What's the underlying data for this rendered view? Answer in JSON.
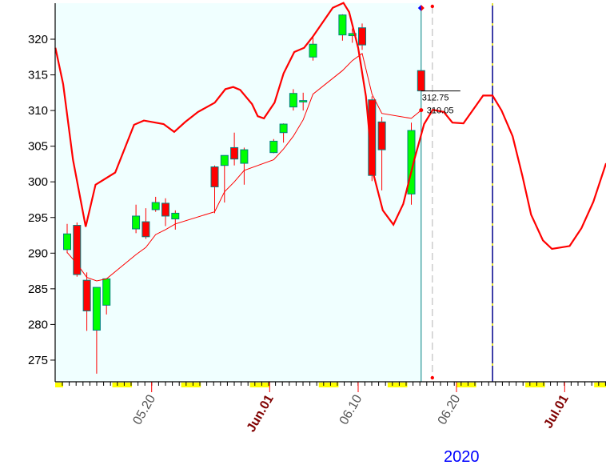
{
  "chart_data": {
    "type": "candlestick",
    "title": "",
    "xlabel": "2020",
    "ylabel": "",
    "ylim": [
      272,
      325.5
    ],
    "yticks": [
      275,
      280,
      285,
      290,
      295,
      300,
      305,
      310,
      315,
      320
    ],
    "xlim": [
      "2020-05-10",
      "2020-07-05T06:00"
    ],
    "xtick_labels": [
      {
        "date": "2020-05-20",
        "label": "05.20",
        "month_start": false
      },
      {
        "date": "2020-06-01",
        "label": "Jun.01",
        "month_start": true
      },
      {
        "date": "2020-06-10",
        "label": "06.10",
        "month_start": false
      },
      {
        "date": "2020-06-20",
        "label": "06.20",
        "month_start": false
      },
      {
        "date": "2020-07-01",
        "label": "Jul.01",
        "month_start": true
      }
    ],
    "year_label": "2020",
    "grid": false,
    "colors": {
      "up": "#00ff00",
      "down": "#ff0000",
      "candle_border": "#008080",
      "history_bg": "#f0ffff",
      "line": "#ff0000",
      "current_line": "#008080",
      "cycle_marker": "#00008b",
      "weekend": "#ffff00",
      "year": "#0000ff"
    },
    "candles": [
      {
        "date": "2020-05-11",
        "o": 290.5,
        "h": 294.1,
        "l": 290.0,
        "c": 292.7
      },
      {
        "date": "2020-05-12",
        "o": 293.9,
        "h": 294.3,
        "l": 286.7,
        "c": 287.0
      },
      {
        "date": "2020-05-13",
        "o": 286.2,
        "h": 287.3,
        "l": 279.1,
        "c": 281.9
      },
      {
        "date": "2020-05-14",
        "o": 279.2,
        "h": 285.2,
        "l": 273.1,
        "c": 285.2
      },
      {
        "date": "2020-05-15",
        "o": 282.7,
        "h": 286.4,
        "l": 281.4,
        "c": 286.4
      },
      {
        "date": "2020-05-18",
        "o": 293.4,
        "h": 296.8,
        "l": 292.8,
        "c": 295.2
      },
      {
        "date": "2020-05-19",
        "o": 294.4,
        "h": 296.3,
        "l": 292.0,
        "c": 292.3
      },
      {
        "date": "2020-05-20",
        "o": 296.1,
        "h": 297.9,
        "l": 295.8,
        "c": 297.1
      },
      {
        "date": "2020-05-21",
        "o": 297.0,
        "h": 297.7,
        "l": 293.8,
        "c": 295.2
      },
      {
        "date": "2020-05-22",
        "o": 294.8,
        "h": 296.0,
        "l": 293.3,
        "c": 295.6
      },
      {
        "date": "2020-05-26",
        "o": 302.1,
        "h": 302.3,
        "l": 295.6,
        "c": 299.3
      },
      {
        "date": "2020-05-27",
        "o": 302.3,
        "h": 303.7,
        "l": 297.1,
        "c": 303.7
      },
      {
        "date": "2020-05-28",
        "o": 304.8,
        "h": 306.9,
        "l": 302.3,
        "c": 303.2
      },
      {
        "date": "2020-05-29",
        "o": 302.6,
        "h": 304.8,
        "l": 299.6,
        "c": 304.5
      },
      {
        "date": "2020-06-01",
        "o": 304.1,
        "h": 306.0,
        "l": 304.0,
        "c": 305.7
      },
      {
        "date": "2020-06-02",
        "o": 306.9,
        "h": 308.2,
        "l": 305.5,
        "c": 308.1
      },
      {
        "date": "2020-06-03",
        "o": 310.5,
        "h": 313.0,
        "l": 310.0,
        "c": 312.4
      },
      {
        "date": "2020-06-04",
        "o": 311.2,
        "h": 312.5,
        "l": 310.0,
        "c": 311.4
      },
      {
        "date": "2020-06-05",
        "o": 317.5,
        "h": 320.5,
        "l": 317.0,
        "c": 319.3
      },
      {
        "date": "2020-06-08",
        "o": 320.6,
        "h": 323.5,
        "l": 319.8,
        "c": 323.4
      },
      {
        "date": "2020-06-09",
        "o": 320.5,
        "h": 321.5,
        "l": 319.5,
        "c": 320.8
      },
      {
        "date": "2020-06-10",
        "o": 321.6,
        "h": 322.2,
        "l": 318.5,
        "c": 319.2
      },
      {
        "date": "2020-06-11",
        "o": 311.5,
        "h": 312.0,
        "l": 300.1,
        "c": 300.9
      },
      {
        "date": "2020-06-12",
        "o": 308.4,
        "h": 309.1,
        "l": 298.8,
        "c": 304.5
      },
      {
        "date": "2020-06-15",
        "o": 298.3,
        "h": 308.3,
        "l": 296.8,
        "c": 307.2
      },
      {
        "date": "2020-06-16",
        "o": 315.6,
        "h": 315.6,
        "l": 312.75,
        "c": 312.75
      }
    ],
    "moving_average": [
      [
        "2020-05-11",
        290.1
      ],
      [
        "2020-05-12",
        288.5
      ],
      [
        "2020-05-13",
        286.6
      ],
      [
        "2020-05-14",
        286.1
      ],
      [
        "2020-05-15",
        286.4
      ],
      [
        "2020-05-18",
        289.8
      ],
      [
        "2020-05-19",
        290.8
      ],
      [
        "2020-05-20",
        292.6
      ],
      [
        "2020-05-21",
        293.3
      ],
      [
        "2020-05-22",
        294.1
      ],
      [
        "2020-05-26",
        295.8
      ],
      [
        "2020-05-27",
        298.6
      ],
      [
        "2020-05-28",
        300.0
      ],
      [
        "2020-05-29",
        301.6
      ],
      [
        "2020-06-01",
        303.1
      ],
      [
        "2020-06-02",
        304.6
      ],
      [
        "2020-06-03",
        306.4
      ],
      [
        "2020-06-04",
        308.7
      ],
      [
        "2020-06-05",
        312.3
      ],
      [
        "2020-06-08",
        315.6
      ],
      [
        "2020-06-09",
        317.0
      ],
      [
        "2020-06-10",
        318.0
      ],
      [
        "2020-06-11",
        312.3
      ],
      [
        "2020-06-12",
        309.6
      ],
      [
        "2020-06-15",
        308.9
      ],
      [
        "2020-06-16",
        310.05
      ]
    ],
    "cycle_line": [
      [
        "2020-05-10T05:00",
        318.8
      ],
      [
        "2020-05-11T00:00",
        313.7
      ],
      [
        "2020-05-12T00:00",
        303.1
      ],
      [
        "2020-05-13T07:00",
        293.7
      ],
      [
        "2020-05-14T07:00",
        299.6
      ],
      [
        "2020-05-16T07:00",
        301.3
      ],
      [
        "2020-05-18T05:00",
        308.0
      ],
      [
        "2020-05-19T05:00",
        308.6
      ],
      [
        "2020-05-21T05:00",
        308.1
      ],
      [
        "2020-05-22T07:00",
        307.0
      ],
      [
        "2020-05-23T10:00",
        308.4
      ],
      [
        "2020-05-24T17:00",
        309.8
      ],
      [
        "2020-05-26T10:00",
        311.1
      ],
      [
        "2020-05-27T12:00",
        313.0
      ],
      [
        "2020-05-28T07:00",
        313.3
      ],
      [
        "2020-05-29T00:00",
        312.9
      ],
      [
        "2020-05-30T05:00",
        310.9
      ],
      [
        "2020-05-30T19:00",
        309.2
      ],
      [
        "2020-05-31T10:00",
        308.9
      ],
      [
        "2020-06-01T12:00",
        311.1
      ],
      [
        "2020-06-02T10:00",
        315.2
      ],
      [
        "2020-06-03T12:00",
        318.2
      ],
      [
        "2020-06-04T12:00",
        318.8
      ],
      [
        "2020-06-05T10:00",
        320.4
      ],
      [
        "2020-06-07T10:00",
        324.4
      ],
      [
        "2020-06-08T12:00",
        325.1
      ],
      [
        "2020-06-09T02:00",
        323.8
      ],
      [
        "2020-06-10T00:00",
        318.8
      ],
      [
        "2020-06-10T19:00",
        312.0
      ],
      [
        "2020-06-11T12:00",
        301.4
      ],
      [
        "2020-06-12T12:00",
        296.0
      ],
      [
        "2020-06-13T14:00",
        294.0
      ],
      [
        "2020-06-14T14:00",
        296.9
      ],
      [
        "2020-06-15T17:00",
        303.1
      ],
      [
        "2020-06-16T17:00",
        308.1
      ],
      [
        "2020-06-17T14:00",
        310.1
      ],
      [
        "2020-06-18T17:00",
        309.8
      ],
      [
        "2020-06-19T14:00",
        308.3
      ],
      [
        "2020-06-20T17:00",
        308.2
      ],
      [
        "2020-06-22T17:00",
        312.1
      ],
      [
        "2020-06-23T16:00",
        312.1
      ],
      [
        "2020-06-24T14:00",
        310.0
      ],
      [
        "2020-06-25T17:00",
        306.4
      ],
      [
        "2020-06-26T17:00",
        300.8
      ],
      [
        "2020-06-27T14:00",
        295.4
      ],
      [
        "2020-06-28T19:00",
        291.8
      ],
      [
        "2020-06-29T17:00",
        290.6
      ],
      [
        "2020-07-01T12:00",
        291.0
      ],
      [
        "2020-07-02T17:00",
        293.5
      ],
      [
        "2020-07-03T22:00",
        297.2
      ],
      [
        "2020-07-05T05:00",
        302.6
      ]
    ],
    "annotations": {
      "last_close_label": "312.75",
      "last_close_value": 312.75,
      "ma_label": "310.05",
      "ma_value": 310.05,
      "current_date": "2020-06-16",
      "next_bar_date": "2020-06-17",
      "cycle_marker_date": "2020-06-23T16:00"
    }
  }
}
